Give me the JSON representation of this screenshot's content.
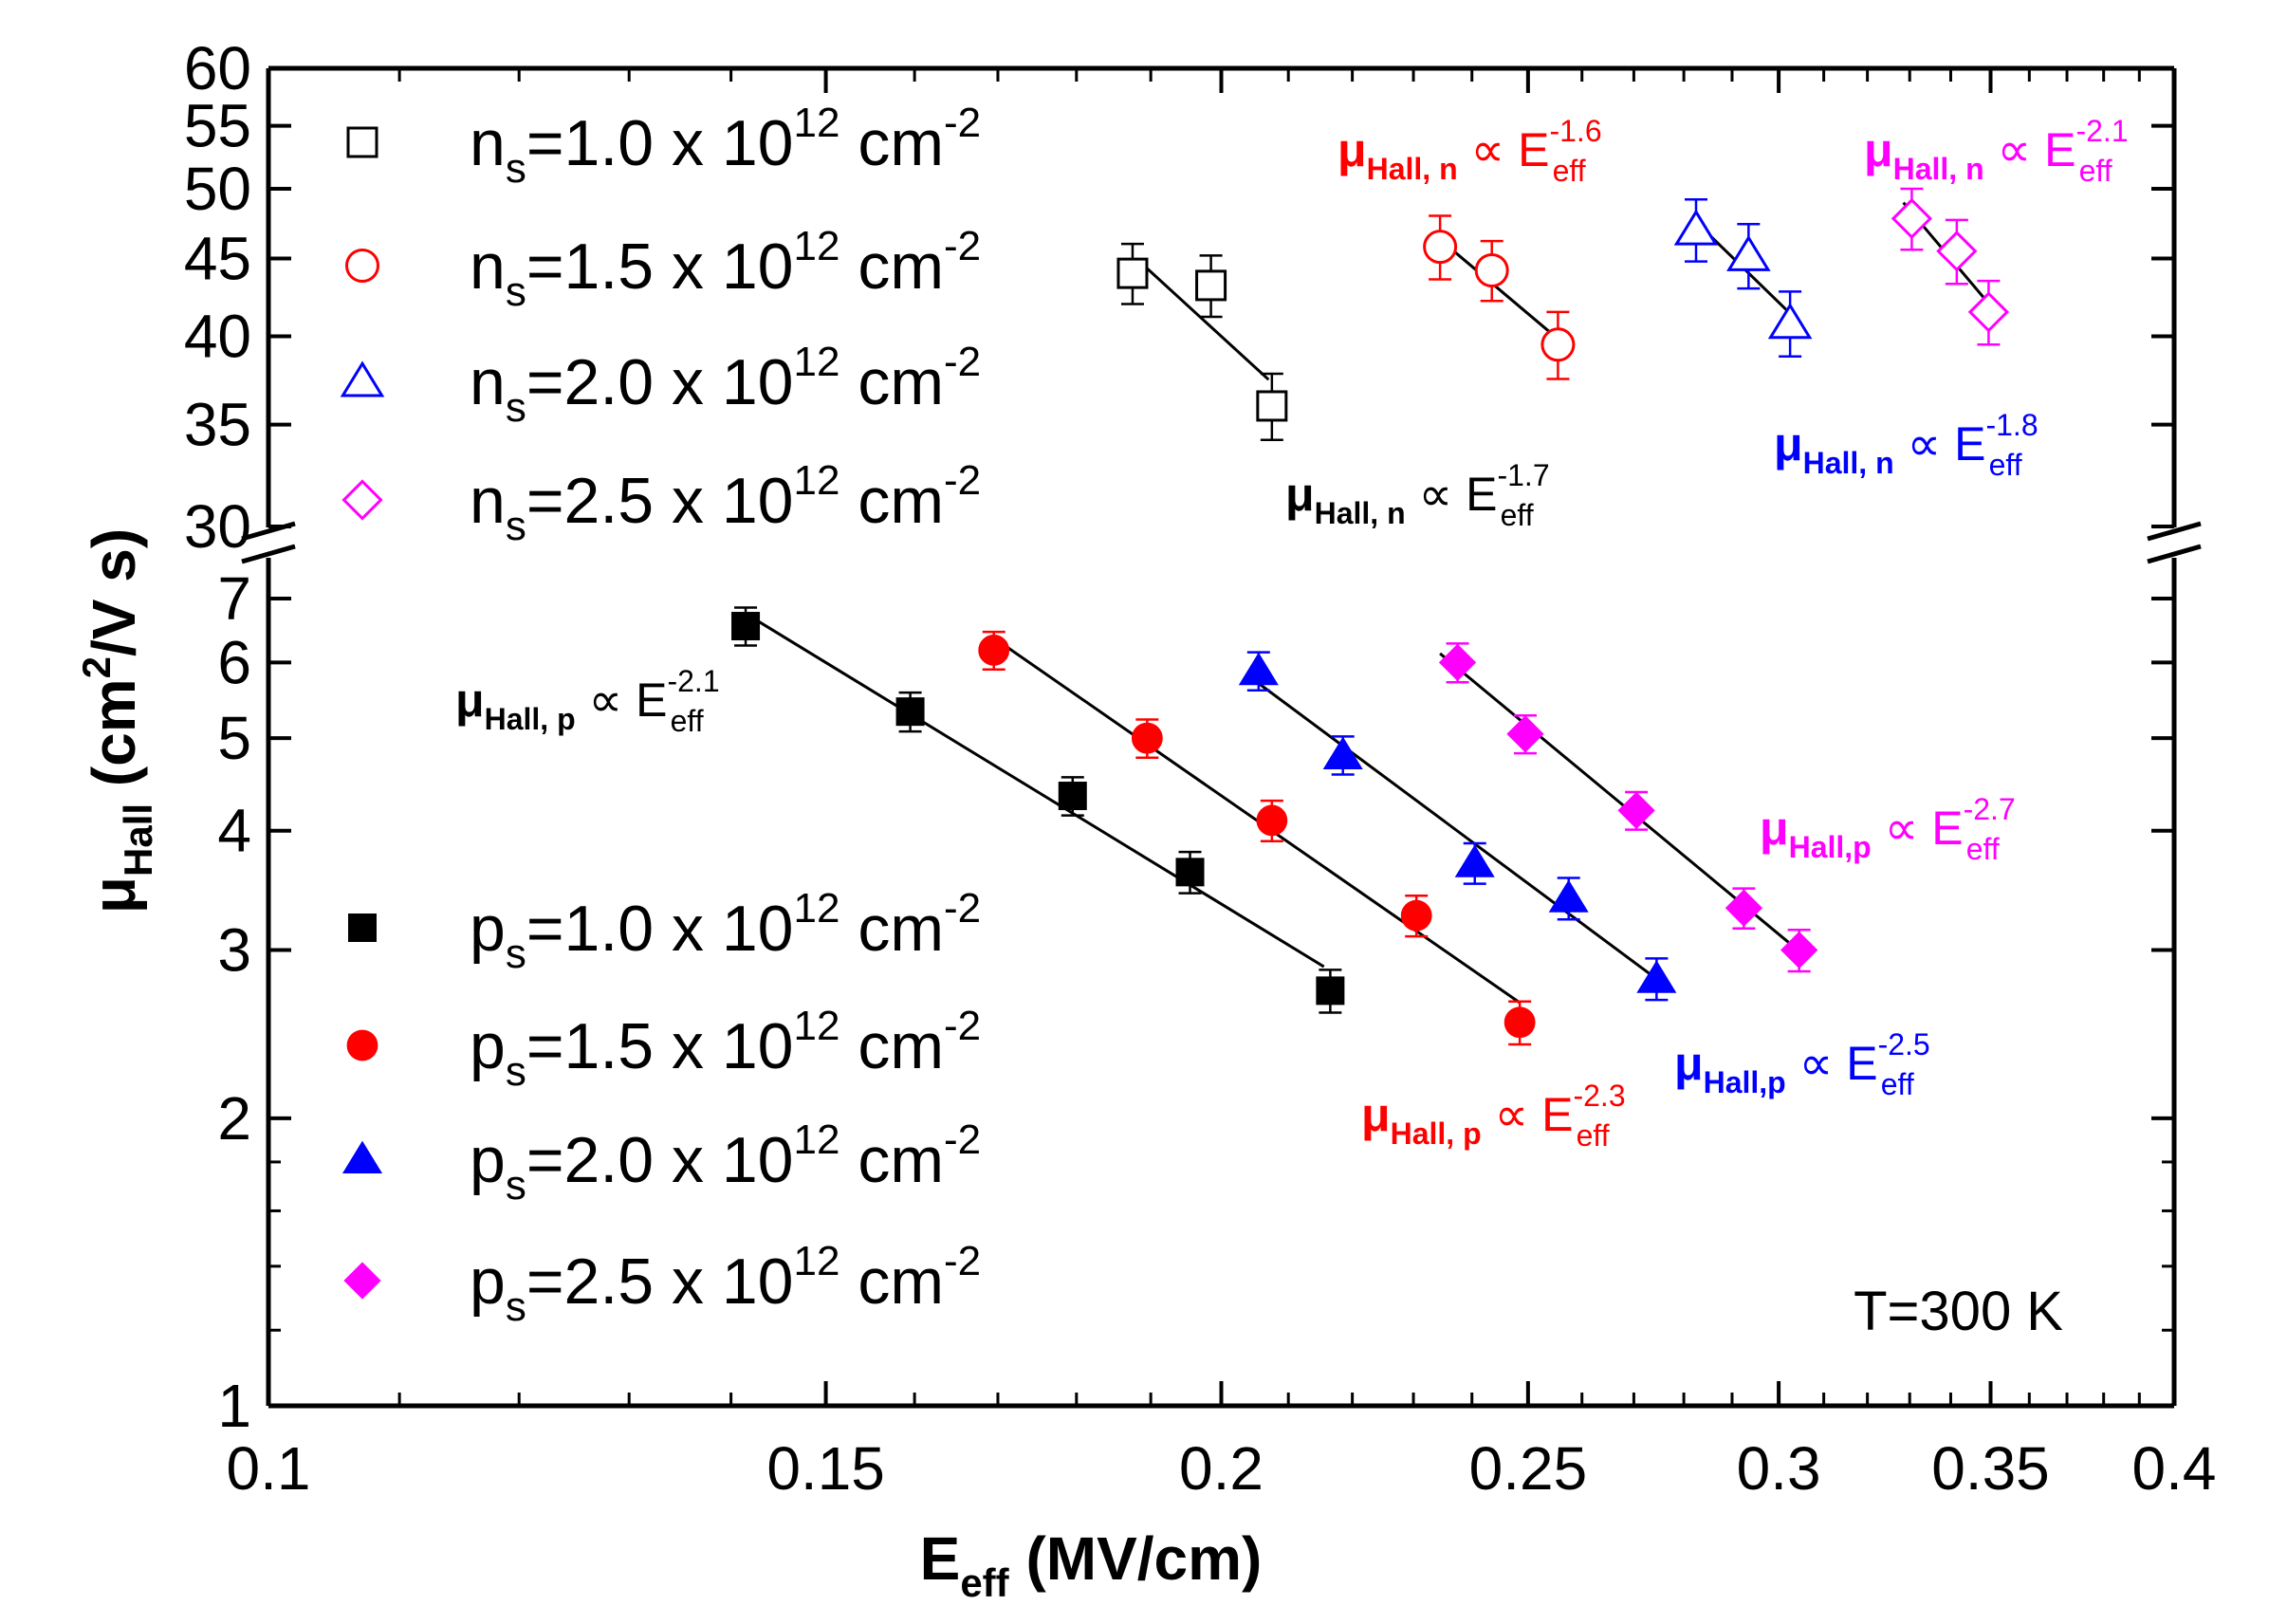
{
  "chart_data": {
    "type": "scatter",
    "xlabel": {
      "main": "E",
      "sub": "eff",
      "rest": " (MV/cm)"
    },
    "ylabel": {
      "main": "μ",
      "sub": "Hall",
      "rest": " (cm",
      "sup": "2",
      "tail": "/V s)"
    },
    "xscale": "log",
    "yscale": "log",
    "broken_y_axis": true,
    "xlim": [
      0.1,
      0.4
    ],
    "ylim_lower": [
      1,
      7.6
    ],
    "ylim_upper": [
      30,
      60
    ],
    "x_ticks": [
      "0.1",
      "0.15",
      "0.2",
      "0.25",
      "0.3",
      "0.35",
      "0.4"
    ],
    "y_ticks_lower": [
      "1",
      "2",
      "3",
      "4",
      "5",
      "6",
      "7"
    ],
    "y_ticks_upper": [
      "30",
      "35",
      "40",
      "45",
      "50",
      "55",
      "60"
    ],
    "annotation_temperature": "T=300 K",
    "colors": {
      "black": "#000000",
      "red": "#ff0000",
      "blue": "#0000ff",
      "magenta": "#ff00ff"
    },
    "series": [
      {
        "name": "n_s=1.0 x 10^12 cm^-2",
        "carrier": "n",
        "density": "1.0",
        "marker": "square",
        "filled": false,
        "color": "#000000",
        "x": [
          0.1875,
          0.1985,
          0.2075
        ],
        "y": [
          44.0,
          43.2,
          36.0
        ],
        "err": [
          2.0,
          2.0,
          1.8
        ],
        "fit_x": [
          0.188,
          0.207
        ],
        "fit_exponent": "-1.7"
      },
      {
        "name": "n_s=1.5 x 10^12 cm^-2",
        "carrier": "n",
        "density": "1.5",
        "marker": "circle",
        "filled": false,
        "color": "#ff0000",
        "x": [
          0.2345,
          0.2435,
          0.2555
        ],
        "y": [
          45.8,
          44.2,
          39.5
        ],
        "err": [
          2.2,
          2.0,
          2.0
        ],
        "fit_x": [
          0.2345,
          0.2555
        ],
        "fit_exponent": "-1.6"
      },
      {
        "name": "n_s=2.0 x 10^12 cm^-2",
        "carrier": "n",
        "density": "2.0",
        "marker": "triangle",
        "filled": false,
        "color": "#0000ff",
        "x": [
          0.2825,
          0.2935,
          0.3025
        ],
        "y": [
          47.0,
          45.2,
          40.8
        ],
        "err": [
          2.2,
          2.2,
          2.0
        ],
        "fit_x": [
          0.2825,
          0.3025
        ],
        "fit_exponent": "-1.8"
      },
      {
        "name": "n_s=2.5 x 10^12 cm^-2",
        "carrier": "n",
        "density": "2.5",
        "marker": "diamond",
        "filled": false,
        "color": "#ff00ff",
        "x": [
          0.3305,
          0.3415,
          0.3495
        ],
        "y": [
          47.8,
          45.5,
          41.5
        ],
        "err": [
          2.2,
          2.2,
          2.0
        ],
        "fit_x": [
          0.3285,
          0.3495
        ],
        "fit_exponent": "-2.1"
      },
      {
        "name": "p_s=1.0 x 10^12 cm^-2",
        "carrier": "p",
        "density": "1.0",
        "marker": "square",
        "filled": true,
        "color": "#000000",
        "x": [
          0.1415,
          0.1595,
          0.1795,
          0.1955,
          0.2165
        ],
        "y": [
          6.55,
          5.33,
          4.35,
          3.62,
          2.72
        ],
        "err": [
          0.3,
          0.25,
          0.2,
          0.18,
          0.14
        ],
        "fit_x": [
          0.1415,
          0.2155
        ],
        "fit_exponent": "-2.1"
      },
      {
        "name": "p_s=1.5 x 10^12 cm^-2",
        "carrier": "p",
        "density": "1.5",
        "marker": "circle",
        "filled": true,
        "color": "#ff0000",
        "x": [
          0.1695,
          0.1895,
          0.2075,
          0.2305,
          0.2485
        ],
        "y": [
          6.18,
          5.0,
          4.1,
          3.26,
          2.52
        ],
        "err": [
          0.28,
          0.23,
          0.2,
          0.16,
          0.13
        ],
        "fit_x": [
          0.1695,
          0.2485
        ],
        "fit_exponent": "-2.3"
      },
      {
        "name": "p_s=2.0 x 10^12 cm^-2",
        "carrier": "p",
        "density": "2.0",
        "marker": "triangle",
        "filled": true,
        "color": "#0000ff",
        "x": [
          0.2055,
          0.2185,
          0.2405,
          0.2575,
          0.2745
        ],
        "y": [
          5.88,
          4.8,
          3.7,
          3.4,
          2.8
        ],
        "err": [
          0.27,
          0.22,
          0.18,
          0.17,
          0.14
        ],
        "fit_x": [
          0.2045,
          0.2745
        ],
        "fit_exponent": "-2.5"
      },
      {
        "name": "p_s=2.5 x 10^12 cm^-2",
        "carrier": "p",
        "density": "2.5",
        "marker": "diamond",
        "filled": true,
        "color": "#ff00ff",
        "x": [
          0.2375,
          0.2495,
          0.2705,
          0.2925,
          0.3045
        ],
        "y": [
          6.0,
          5.05,
          4.2,
          3.32,
          3.0
        ],
        "err": [
          0.28,
          0.23,
          0.19,
          0.16,
          0.15
        ],
        "fit_x": [
          0.2345,
          0.3045
        ],
        "fit_exponent": "-2.7"
      }
    ],
    "legend": [
      {
        "prefix": "n",
        "sub": "s",
        "body": "=1.0 x 10",
        "sup": "12",
        "unit": " cm",
        "usup": "-2"
      },
      {
        "prefix": "n",
        "sub": "s",
        "body": "=1.5 x 10",
        "sup": "12",
        "unit": " cm",
        "usup": "-2"
      },
      {
        "prefix": "n",
        "sub": "s",
        "body": "=2.0 x 10",
        "sup": "12",
        "unit": " cm",
        "usup": "-2"
      },
      {
        "prefix": "n",
        "sub": "s",
        "body": "=2.5 x 10",
        "sup": "12",
        "unit": " cm",
        "usup": "-2"
      },
      {
        "prefix": "p",
        "sub": "s",
        "body": "=1.0 x 10",
        "sup": "12",
        "unit": " cm",
        "usup": "-2"
      },
      {
        "prefix": "p",
        "sub": "s",
        "body": "=1.5 x 10",
        "sup": "12",
        "unit": " cm",
        "usup": "-2"
      },
      {
        "prefix": "p",
        "sub": "s",
        "body": "=2.0 x 10",
        "sup": "12",
        "unit": " cm",
        "usup": "-2"
      },
      {
        "prefix": "p",
        "sub": "s",
        "body": "=2.5 x 10",
        "sup": "12",
        "unit": " cm",
        "usup": "-2"
      }
    ],
    "fit_annotations": [
      {
        "mu": "μ",
        "sub": "Hall, n",
        "prop": " ∝ E",
        "esub": "eff",
        "exp": "-1.6",
        "color": "#ff0000"
      },
      {
        "mu": "μ",
        "sub": "Hall, n",
        "prop": " ∝ E",
        "esub": "eff",
        "exp": "-2.1",
        "color": "#ff00ff"
      },
      {
        "mu": "μ",
        "sub": "Hall, n",
        "prop": " ∝ E",
        "esub": "eff",
        "exp": "-1.7",
        "color": "#000000"
      },
      {
        "mu": "μ",
        "sub": "Hall, n",
        "prop": " ∝ E",
        "esub": "eff",
        "exp": "-1.8",
        "color": "#0000ff"
      },
      {
        "mu": "μ",
        "sub": "Hall, p",
        "prop": " ∝ E",
        "esub": "eff",
        "exp": "-2.1",
        "color": "#000000"
      },
      {
        "mu": "μ",
        "sub": "Hall,p",
        "prop": " ∝ E",
        "esub": "eff",
        "exp": "-2.7",
        "color": "#ff00ff"
      },
      {
        "mu": "μ",
        "sub": "Hall,p",
        "prop": " ∝ E",
        "esub": "eff",
        "exp": "-2.5",
        "color": "#0000ff"
      },
      {
        "mu": "μ",
        "sub": "Hall, p",
        "prop": " ∝ E",
        "esub": "eff",
        "exp": "-2.3",
        "color": "#ff0000"
      }
    ]
  }
}
